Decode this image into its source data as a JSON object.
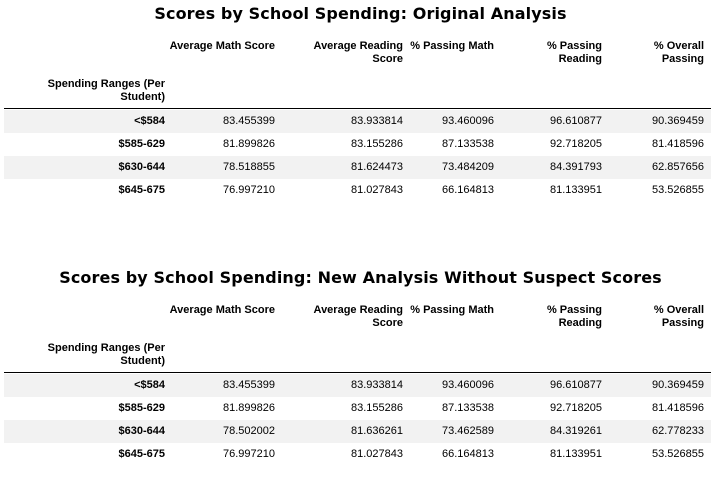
{
  "tables": [
    {
      "title": "Scores by School Spending: Original Analysis",
      "columns": [
        "Average Math Score",
        "Average Reading Score",
        "% Passing Math",
        "% Passing Reading",
        "% Overall Passing"
      ],
      "index_name": "Spending Ranges (Per Student)",
      "rows": [
        {
          "label": "<$584",
          "values": [
            "83.455399",
            "83.933814",
            "93.460096",
            "96.610877",
            "90.369459"
          ]
        },
        {
          "label": "$585-629",
          "values": [
            "81.899826",
            "83.155286",
            "87.133538",
            "92.718205",
            "81.418596"
          ]
        },
        {
          "label": "$630-644",
          "values": [
            "78.518855",
            "81.624473",
            "73.484209",
            "84.391793",
            "62.857656"
          ]
        },
        {
          "label": "$645-675",
          "values": [
            "76.997210",
            "81.027843",
            "66.164813",
            "81.133951",
            "53.526855"
          ]
        }
      ]
    },
    {
      "title": "Scores by School Spending: New Analysis Without Suspect Scores",
      "columns": [
        "Average Math Score",
        "Average Reading Score",
        "% Passing Math",
        "% Passing Reading",
        "% Overall Passing"
      ],
      "index_name": "Spending Ranges (Per Student)",
      "rows": [
        {
          "label": "<$584",
          "values": [
            "83.455399",
            "83.933814",
            "93.460096",
            "96.610877",
            "90.369459"
          ]
        },
        {
          "label": "$585-629",
          "values": [
            "81.899826",
            "83.155286",
            "87.133538",
            "92.718205",
            "81.418596"
          ]
        },
        {
          "label": "$630-644",
          "values": [
            "78.502002",
            "81.636261",
            "73.462589",
            "84.319261",
            "62.778233"
          ]
        },
        {
          "label": "$645-675",
          "values": [
            "76.997210",
            "81.027843",
            "66.164813",
            "81.133951",
            "53.526855"
          ]
        }
      ]
    }
  ]
}
